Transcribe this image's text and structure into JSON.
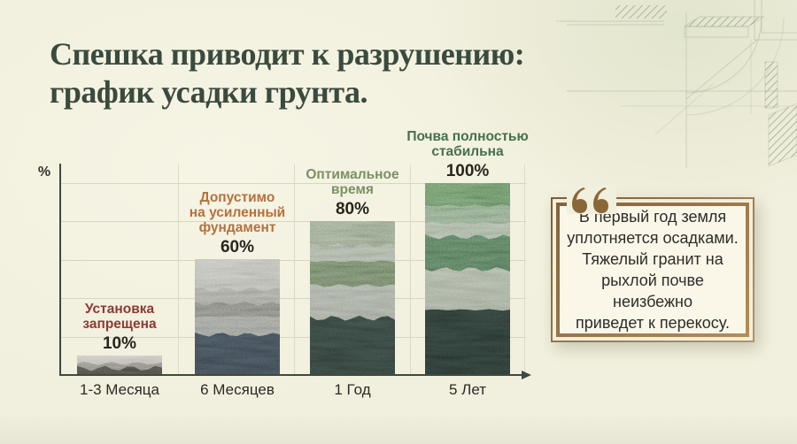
{
  "title": "Спешка приводит к разрушению:\nграфик усадки грунта.",
  "colors": {
    "background": "#f1efdd",
    "title_green": "#3a4a3e",
    "axis": "#3e4a40",
    "gridline": "#d8d6c2",
    "forbidden_red": "#8e3a34",
    "caution_orange": "#b5713c",
    "optimal_green": "#7a9164",
    "stable_green": "#44714c",
    "quote_frame_brown": "#9a7847",
    "quote_mark_brown": "#8a6736",
    "quote_card_bg": "#faf7e9"
  },
  "chart_data": {
    "type": "bar",
    "title": "график усадки грунта",
    "unit_label": "%",
    "xlabel": "",
    "ylabel": "%",
    "ylim": [
      0,
      100
    ],
    "grid": true,
    "legend_position": "none",
    "categories": [
      "1-3 Месяца",
      "6 Месяцев",
      "1 Год",
      "5 Лет"
    ],
    "values": [
      10,
      60,
      80,
      100
    ],
    "value_labels": [
      "10%",
      "60%",
      "80%",
      "100%"
    ],
    "annotations": [
      {
        "text": "Установка\nзапрещена",
        "color": "#8e3a34"
      },
      {
        "text": "Допустимо\nна усиленный\nфундамент",
        "color": "#b5713c"
      },
      {
        "text": "Оптимальное\nвремя",
        "color": "#7a9164"
      },
      {
        "text": "Почва полностью\nстабильна",
        "color": "#44714c"
      }
    ],
    "bar_strata": [
      [
        {
          "f": 0.4,
          "c": "#b5b2a8"
        },
        {
          "f": 0.25,
          "c": "#7e7d75"
        },
        {
          "f": 0.35,
          "c": "#45453f"
        }
      ],
      [
        {
          "f": 0.26,
          "c": "#a6a79d"
        },
        {
          "f": 0.12,
          "c": "#8d8e84"
        },
        {
          "f": 0.12,
          "c": "#70716a"
        },
        {
          "f": 0.15,
          "c": "#90948b"
        },
        {
          "f": 0.35,
          "c": "#39434b"
        }
      ],
      [
        {
          "f": 0.16,
          "c": "#76856d"
        },
        {
          "f": 0.1,
          "c": "#8e9b85"
        },
        {
          "f": 0.16,
          "c": "#5d6b55"
        },
        {
          "f": 0.21,
          "c": "#9aa391"
        },
        {
          "f": 0.37,
          "c": "#2f3b37"
        }
      ],
      [
        {
          "f": 0.12,
          "c": "#547051"
        },
        {
          "f": 0.09,
          "c": "#6f8a6c"
        },
        {
          "f": 0.07,
          "c": "#8fa287"
        },
        {
          "f": 0.17,
          "c": "#48634c"
        },
        {
          "f": 0.21,
          "c": "#9dab91"
        },
        {
          "f": 0.34,
          "c": "#283430"
        }
      ]
    ]
  },
  "quote": {
    "mark": "❝",
    "text": "В первый год земля\nуплотняется осадками.\nТяжелый гранит на\nрыхлой почве неизбежно\nприведет к перекосу."
  }
}
